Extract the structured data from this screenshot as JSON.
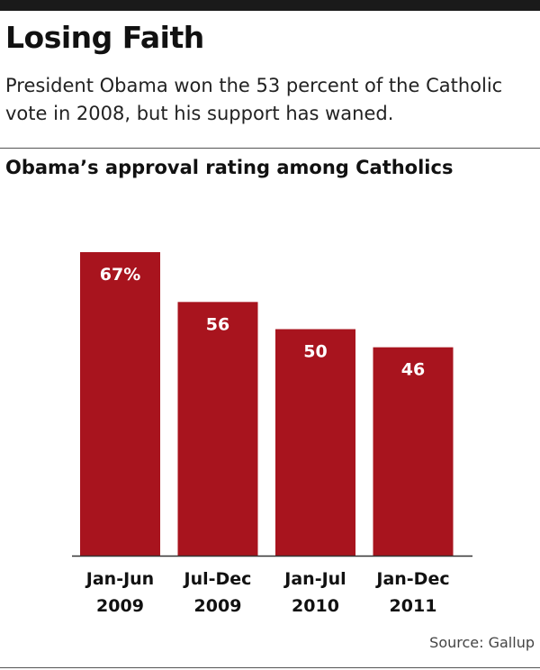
{
  "headline": "Losing Faith",
  "subhead": "President Obama won the 53 percent of the Catholic vote in 2008, but his support has waned.",
  "source": "Source: Gallup",
  "colors": {
    "bar": "#a8141e",
    "baseline": "#333333",
    "rule": "#1a1a1a"
  },
  "chart_data": {
    "type": "bar",
    "title": "Obama’s approval rating among Catholics",
    "categories": [
      [
        "Jan-Jun",
        "2009"
      ],
      [
        "Jul-Dec",
        "2009"
      ],
      [
        "Jan-Jul",
        "2010"
      ],
      [
        "Jan-Dec",
        "2011"
      ]
    ],
    "values": [
      67,
      56,
      50,
      46
    ],
    "data_labels": [
      "67%",
      "56",
      "50",
      "46"
    ],
    "ylim": [
      0,
      67
    ],
    "grid": false,
    "legend": "none"
  }
}
